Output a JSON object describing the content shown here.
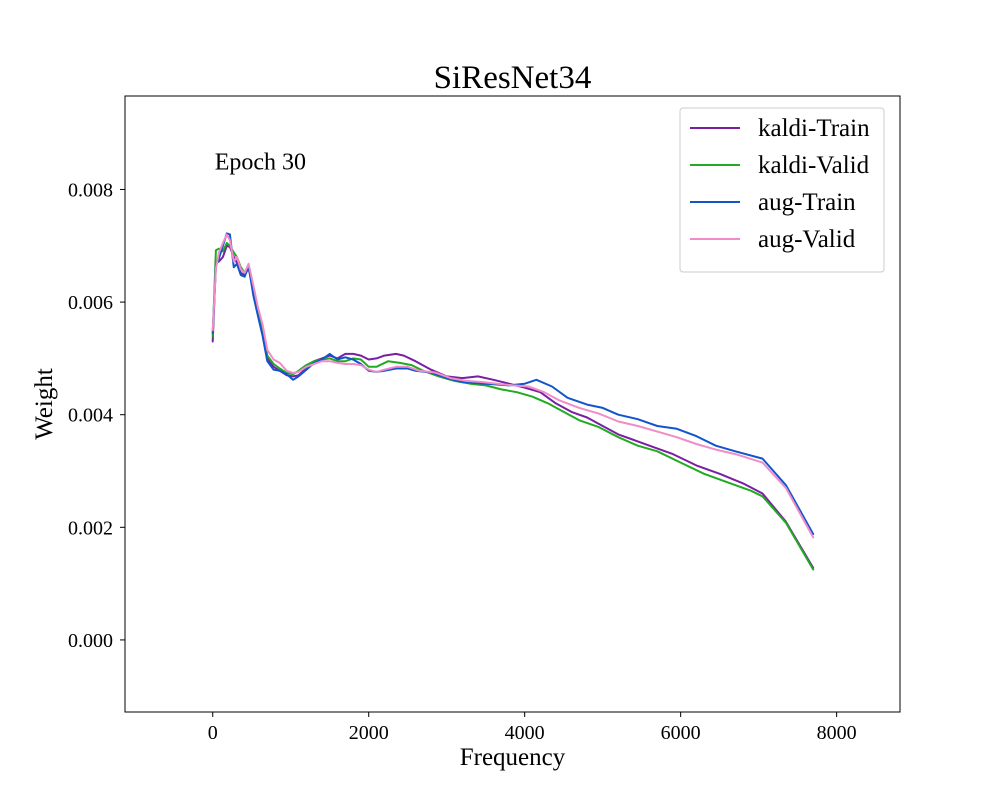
{
  "chart_data": {
    "type": "line",
    "title": "SiResNet34",
    "xlabel": "Frequency",
    "ylabel": "Weight",
    "xlim": [
      -1125,
      8812.5
    ],
    "ylim": [
      -0.00128,
      0.00966
    ],
    "xticks": [
      0,
      2000,
      4000,
      6000,
      8000
    ],
    "xtick_labels": [
      "0",
      "2000",
      "4000",
      "6000",
      "8000"
    ],
    "yticks": [
      0.0,
      0.002,
      0.004,
      0.006,
      0.008
    ],
    "ytick_labels": [
      "0.000",
      "0.002",
      "0.004",
      "0.006",
      "0.008"
    ],
    "grid": false,
    "legend_position": "top-right",
    "annotations": [
      {
        "text": "Epoch 30",
        "x": 0,
        "y": 0.0085
      }
    ],
    "series": [
      {
        "name": "kaldi-Train",
        "color": "#7b1fa2",
        "points": [
          [
            0,
            0.0053
          ],
          [
            40,
            0.0067
          ],
          [
            80,
            0.00672
          ],
          [
            130,
            0.0068
          ],
          [
            180,
            0.007
          ],
          [
            220,
            0.00698
          ],
          [
            270,
            0.0068
          ],
          [
            310,
            0.0067
          ],
          [
            360,
            0.00652
          ],
          [
            410,
            0.00648
          ],
          [
            460,
            0.0066
          ],
          [
            520,
            0.0062
          ],
          [
            580,
            0.0058
          ],
          [
            640,
            0.00545
          ],
          [
            700,
            0.005
          ],
          [
            780,
            0.00485
          ],
          [
            860,
            0.00478
          ],
          [
            950,
            0.0047
          ],
          [
            1030,
            0.00468
          ],
          [
            1100,
            0.0047
          ],
          [
            1200,
            0.00482
          ],
          [
            1300,
            0.00495
          ],
          [
            1400,
            0.005
          ],
          [
            1500,
            0.00505
          ],
          [
            1600,
            0.005
          ],
          [
            1700,
            0.00508
          ],
          [
            1800,
            0.00508
          ],
          [
            1900,
            0.00505
          ],
          [
            2000,
            0.00498
          ],
          [
            2100,
            0.005
          ],
          [
            2200,
            0.00505
          ],
          [
            2350,
            0.00508
          ],
          [
            2450,
            0.00505
          ],
          [
            2600,
            0.00495
          ],
          [
            2800,
            0.0048
          ],
          [
            3000,
            0.00468
          ],
          [
            3200,
            0.00465
          ],
          [
            3400,
            0.00468
          ],
          [
            3600,
            0.00462
          ],
          [
            3800,
            0.00455
          ],
          [
            4000,
            0.00448
          ],
          [
            4200,
            0.0044
          ],
          [
            4400,
            0.0042
          ],
          [
            4600,
            0.00405
          ],
          [
            4800,
            0.00395
          ],
          [
            5000,
            0.0038
          ],
          [
            5200,
            0.00365
          ],
          [
            5400,
            0.00355
          ],
          [
            5600,
            0.00345
          ],
          [
            5900,
            0.0033
          ],
          [
            6200,
            0.0031
          ],
          [
            6500,
            0.00295
          ],
          [
            6800,
            0.00278
          ],
          [
            7050,
            0.0026
          ],
          [
            7350,
            0.0021
          ],
          [
            7700,
            0.00128
          ]
        ]
      },
      {
        "name": "kaldi-Valid",
        "color": "#22aa22",
        "points": [
          [
            0,
            0.0054
          ],
          [
            40,
            0.00692
          ],
          [
            80,
            0.00695
          ],
          [
            130,
            0.0069
          ],
          [
            180,
            0.00705
          ],
          [
            220,
            0.007
          ],
          [
            270,
            0.00688
          ],
          [
            310,
            0.0068
          ],
          [
            360,
            0.00662
          ],
          [
            410,
            0.00652
          ],
          [
            460,
            0.00665
          ],
          [
            520,
            0.00625
          ],
          [
            580,
            0.00585
          ],
          [
            640,
            0.00552
          ],
          [
            700,
            0.00505
          ],
          [
            780,
            0.0049
          ],
          [
            860,
            0.00482
          ],
          [
            950,
            0.00474
          ],
          [
            1030,
            0.00472
          ],
          [
            1100,
            0.00478
          ],
          [
            1200,
            0.00488
          ],
          [
            1300,
            0.00495
          ],
          [
            1400,
            0.00498
          ],
          [
            1500,
            0.005
          ],
          [
            1600,
            0.00495
          ],
          [
            1700,
            0.00495
          ],
          [
            1800,
            0.005
          ],
          [
            1900,
            0.00498
          ],
          [
            2000,
            0.00485
          ],
          [
            2100,
            0.00485
          ],
          [
            2250,
            0.00495
          ],
          [
            2400,
            0.00492
          ],
          [
            2550,
            0.00488
          ],
          [
            2700,
            0.00478
          ],
          [
            2900,
            0.00468
          ],
          [
            3100,
            0.0046
          ],
          [
            3300,
            0.00455
          ],
          [
            3500,
            0.00452
          ],
          [
            3700,
            0.00445
          ],
          [
            3900,
            0.0044
          ],
          [
            4100,
            0.00432
          ],
          [
            4300,
            0.0042
          ],
          [
            4500,
            0.00405
          ],
          [
            4700,
            0.0039
          ],
          [
            4950,
            0.00378
          ],
          [
            5200,
            0.0036
          ],
          [
            5450,
            0.00345
          ],
          [
            5700,
            0.00335
          ],
          [
            6000,
            0.00315
          ],
          [
            6300,
            0.00295
          ],
          [
            6600,
            0.0028
          ],
          [
            6900,
            0.00265
          ],
          [
            7050,
            0.00255
          ],
          [
            7350,
            0.00208
          ],
          [
            7700,
            0.00125
          ]
        ]
      },
      {
        "name": "aug-Train",
        "color": "#1155cc",
        "points": [
          [
            0,
            0.00545
          ],
          [
            40,
            0.00665
          ],
          [
            80,
            0.00678
          ],
          [
            130,
            0.007
          ],
          [
            180,
            0.00722
          ],
          [
            220,
            0.0072
          ],
          [
            270,
            0.00662
          ],
          [
            310,
            0.00668
          ],
          [
            360,
            0.00648
          ],
          [
            410,
            0.00645
          ],
          [
            460,
            0.00665
          ],
          [
            520,
            0.00612
          ],
          [
            580,
            0.00575
          ],
          [
            640,
            0.0054
          ],
          [
            700,
            0.00495
          ],
          [
            780,
            0.0048
          ],
          [
            860,
            0.00478
          ],
          [
            950,
            0.00472
          ],
          [
            1030,
            0.00462
          ],
          [
            1100,
            0.00468
          ],
          [
            1200,
            0.0048
          ],
          [
            1300,
            0.00492
          ],
          [
            1400,
            0.00498
          ],
          [
            1500,
            0.00508
          ],
          [
            1600,
            0.00498
          ],
          [
            1700,
            0.00502
          ],
          [
            1800,
            0.00498
          ],
          [
            1900,
            0.0049
          ],
          [
            2000,
            0.00478
          ],
          [
            2100,
            0.00476
          ],
          [
            2200,
            0.00478
          ],
          [
            2350,
            0.00482
          ],
          [
            2500,
            0.00482
          ],
          [
            2600,
            0.00478
          ],
          [
            2800,
            0.00475
          ],
          [
            3000,
            0.00465
          ],
          [
            3200,
            0.00458
          ],
          [
            3400,
            0.00456
          ],
          [
            3600,
            0.00454
          ],
          [
            3800,
            0.00452
          ],
          [
            4000,
            0.00455
          ],
          [
            4150,
            0.00462
          ],
          [
            4350,
            0.0045
          ],
          [
            4550,
            0.0043
          ],
          [
            4800,
            0.00418
          ],
          [
            5000,
            0.00412
          ],
          [
            5200,
            0.004
          ],
          [
            5450,
            0.00392
          ],
          [
            5700,
            0.0038
          ],
          [
            5950,
            0.00375
          ],
          [
            6200,
            0.00362
          ],
          [
            6450,
            0.00345
          ],
          [
            6700,
            0.00335
          ],
          [
            7050,
            0.00322
          ],
          [
            7350,
            0.00275
          ],
          [
            7700,
            0.00188
          ]
        ]
      },
      {
        "name": "aug-Valid",
        "color": "#f08cc8",
        "points": [
          [
            0,
            0.0055
          ],
          [
            40,
            0.0066
          ],
          [
            80,
            0.00688
          ],
          [
            130,
            0.00705
          ],
          [
            180,
            0.0072
          ],
          [
            220,
            0.0071
          ],
          [
            270,
            0.00672
          ],
          [
            310,
            0.0068
          ],
          [
            360,
            0.00658
          ],
          [
            410,
            0.00652
          ],
          [
            460,
            0.00668
          ],
          [
            520,
            0.0063
          ],
          [
            580,
            0.0059
          ],
          [
            640,
            0.0056
          ],
          [
            700,
            0.00515
          ],
          [
            780,
            0.00498
          ],
          [
            860,
            0.00492
          ],
          [
            950,
            0.00478
          ],
          [
            1030,
            0.00474
          ],
          [
            1100,
            0.00476
          ],
          [
            1200,
            0.00485
          ],
          [
            1300,
            0.0049
          ],
          [
            1400,
            0.00495
          ],
          [
            1500,
            0.00495
          ],
          [
            1600,
            0.00492
          ],
          [
            1700,
            0.0049
          ],
          [
            1800,
            0.0049
          ],
          [
            1900,
            0.00488
          ],
          [
            2000,
            0.0048
          ],
          [
            2100,
            0.00476
          ],
          [
            2200,
            0.0048
          ],
          [
            2350,
            0.00485
          ],
          [
            2500,
            0.00485
          ],
          [
            2650,
            0.00478
          ],
          [
            2850,
            0.00475
          ],
          [
            3050,
            0.00465
          ],
          [
            3250,
            0.0046
          ],
          [
            3450,
            0.00458
          ],
          [
            3650,
            0.00455
          ],
          [
            3850,
            0.00452
          ],
          [
            4050,
            0.0045
          ],
          [
            4250,
            0.0044
          ],
          [
            4450,
            0.00425
          ],
          [
            4700,
            0.00412
          ],
          [
            4950,
            0.00402
          ],
          [
            5200,
            0.00388
          ],
          [
            5450,
            0.0038
          ],
          [
            5700,
            0.0037
          ],
          [
            5950,
            0.0036
          ],
          [
            6200,
            0.00348
          ],
          [
            6450,
            0.00338
          ],
          [
            6700,
            0.0033
          ],
          [
            7050,
            0.00315
          ],
          [
            7350,
            0.0027
          ],
          [
            7700,
            0.00182
          ]
        ]
      }
    ]
  }
}
